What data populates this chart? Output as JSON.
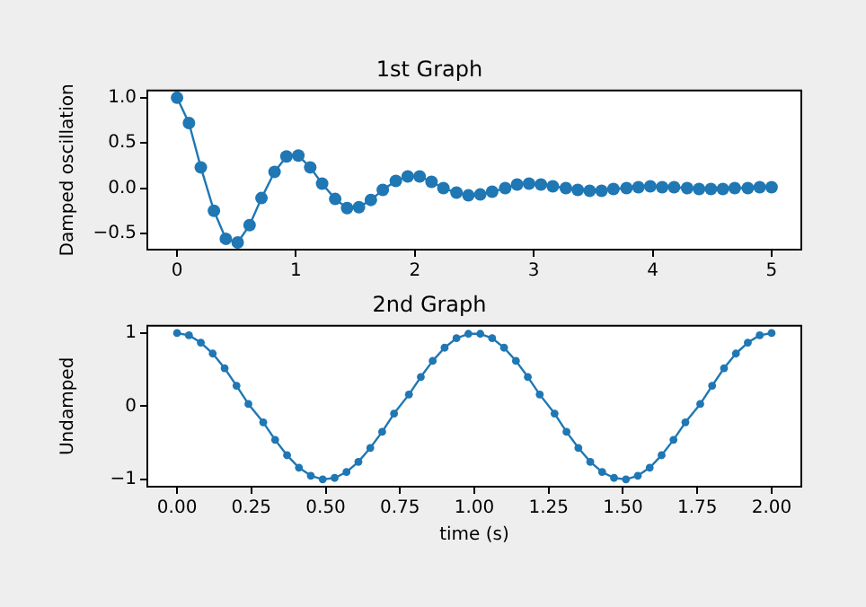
{
  "chart_data": [
    {
      "type": "line",
      "title": "1st Graph",
      "ylabel": "Damped oscillation",
      "marker": "circle",
      "line_style": "solid",
      "x": [
        0,
        0.1,
        0.2,
        0.31,
        0.41,
        0.51,
        0.61,
        0.71,
        0.82,
        0.92,
        1.02,
        1.12,
        1.22,
        1.33,
        1.43,
        1.53,
        1.63,
        1.73,
        1.84,
        1.94,
        2.04,
        2.14,
        2.24,
        2.35,
        2.45,
        2.55,
        2.65,
        2.76,
        2.86,
        2.96,
        3.06,
        3.16,
        3.27,
        3.37,
        3.47,
        3.57,
        3.67,
        3.78,
        3.88,
        3.98,
        4.08,
        4.18,
        4.29,
        4.39,
        4.49,
        4.59,
        4.69,
        4.8,
        4.9,
        5
      ],
      "series": [
        {
          "color": "#1f77b4",
          "values": [
            1.0,
            0.72,
            0.23,
            -0.25,
            -0.56,
            -0.6,
            -0.41,
            -0.11,
            0.18,
            0.35,
            0.36,
            0.23,
            0.05,
            -0.12,
            -0.22,
            -0.21,
            -0.13,
            -0.02,
            0.08,
            0.13,
            0.13,
            0.07,
            0.0,
            -0.05,
            -0.08,
            -0.07,
            -0.04,
            0.0,
            0.04,
            0.05,
            0.04,
            0.02,
            0.0,
            -0.02,
            -0.03,
            -0.03,
            -0.01,
            0.0,
            0.01,
            0.02,
            0.01,
            0.01,
            0.0,
            -0.01,
            -0.01,
            -0.01,
            0.0,
            0.0,
            0.01,
            0.01
          ]
        }
      ],
      "xlim": [
        -0.25,
        5.25
      ],
      "xticks": [
        0,
        1,
        2,
        3,
        4,
        5
      ],
      "ylim": [
        -0.68,
        1.08
      ],
      "yticks": [
        {
          "value": -0.5,
          "label": "−0.5"
        },
        {
          "value": 0,
          "label": "0.0"
        },
        {
          "value": 0.5,
          "label": "0.5"
        },
        {
          "value": 1,
          "label": "1.0"
        }
      ],
      "grid": false,
      "legend": false
    },
    {
      "type": "line",
      "title": "2nd Graph",
      "xlabel": "time (s)",
      "ylabel": "Undamped",
      "marker": "circle",
      "line_style": "solid",
      "x": [
        0,
        0.04,
        0.08,
        0.12,
        0.16,
        0.2,
        0.24,
        0.29,
        0.33,
        0.37,
        0.41,
        0.45,
        0.49,
        0.53,
        0.57,
        0.61,
        0.65,
        0.69,
        0.73,
        0.78,
        0.82,
        0.86,
        0.9,
        0.94,
        0.98,
        1.02,
        1.06,
        1.1,
        1.14,
        1.18,
        1.22,
        1.27,
        1.31,
        1.35,
        1.39,
        1.43,
        1.47,
        1.51,
        1.55,
        1.59,
        1.63,
        1.67,
        1.71,
        1.76,
        1.8,
        1.84,
        1.88,
        1.92,
        1.96,
        2
      ],
      "series": [
        {
          "color": "#1f77b4",
          "values": [
            1,
            0.97,
            0.87,
            0.72,
            0.52,
            0.28,
            0.03,
            -0.22,
            -0.46,
            -0.67,
            -0.84,
            -0.95,
            -1.0,
            -0.98,
            -0.9,
            -0.76,
            -0.57,
            -0.35,
            -0.1,
            0.16,
            0.4,
            0.62,
            0.8,
            0.93,
            0.99,
            0.99,
            0.93,
            0.8,
            0.62,
            0.4,
            0.16,
            -0.1,
            -0.35,
            -0.57,
            -0.76,
            -0.9,
            -0.98,
            -1.0,
            -0.95,
            -0.84,
            -0.67,
            -0.46,
            -0.22,
            0.03,
            0.28,
            0.52,
            0.72,
            0.87,
            0.97,
            1
          ]
        }
      ],
      "xlim": [
        -0.1,
        2.1
      ],
      "xticks": [
        {
          "value": 0,
          "label": "0.00"
        },
        {
          "value": 0.25,
          "label": "0.25"
        },
        {
          "value": 0.5,
          "label": "0.50"
        },
        {
          "value": 0.75,
          "label": "0.75"
        },
        {
          "value": 1,
          "label": "1.00"
        },
        {
          "value": 1.25,
          "label": "1.25"
        },
        {
          "value": 1.5,
          "label": "1.50"
        },
        {
          "value": 1.75,
          "label": "1.75"
        },
        {
          "value": 2,
          "label": "2.00"
        }
      ],
      "ylim": [
        -1.1,
        1.1
      ],
      "yticks": [
        {
          "value": -1,
          "label": "−1"
        },
        0,
        1
      ],
      "grid": false,
      "legend": false
    }
  ]
}
